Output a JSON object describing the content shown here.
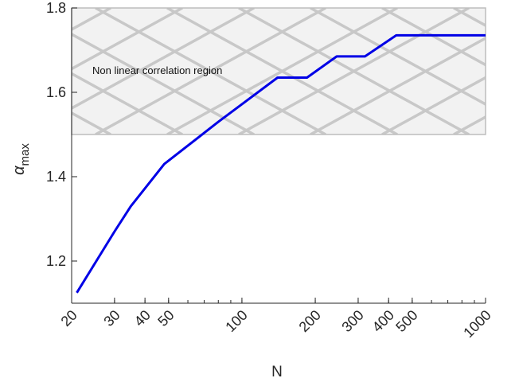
{
  "chart_data": {
    "type": "line",
    "title": "",
    "xlabel": "N",
    "ylabel": "α",
    "ylabel_subscript": "max",
    "xscale": "log",
    "xlim": [
      20,
      1000
    ],
    "ylim": [
      1.1,
      1.8
    ],
    "grid": false,
    "legend": "none",
    "line_color": "#0000e6",
    "x_ticks": [
      20,
      30,
      40,
      50,
      100,
      200,
      300,
      400,
      500,
      1000
    ],
    "x_tick_labels": [
      "20",
      "30",
      "40",
      "50",
      "100",
      "200",
      "300",
      "400",
      "500",
      "1000"
    ],
    "y_ticks": [
      1.2,
      1.4,
      1.6,
      1.8
    ],
    "y_tick_labels": [
      "1.2",
      "1.4",
      "1.6",
      "1.8"
    ],
    "series": [
      {
        "x": [
          21,
          30,
          35,
          48,
          80,
          140,
          185,
          245,
          320,
          430,
          1000
        ],
        "y": [
          1.125,
          1.27,
          1.33,
          1.43,
          1.53,
          1.635,
          1.635,
          1.685,
          1.685,
          1.735,
          1.735
        ]
      }
    ],
    "region": {
      "label": "Non linear correlation region",
      "y_range": [
        1.5,
        1.8
      ],
      "fill_color": "#f2f2f2",
      "hatch_color": "#c8c8c8"
    }
  }
}
